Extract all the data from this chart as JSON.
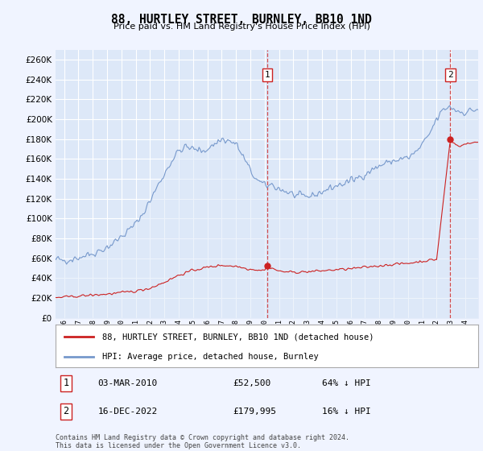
{
  "title": "88, HURTLEY STREET, BURNLEY, BB10 1ND",
  "subtitle": "Price paid vs. HM Land Registry's House Price Index (HPI)",
  "background_color": "#f0f4ff",
  "plot_bg_color": "#dde8f8",
  "grid_color": "#ffffff",
  "ylim": [
    0,
    270000
  ],
  "yticks": [
    0,
    20000,
    40000,
    60000,
    80000,
    100000,
    120000,
    140000,
    160000,
    180000,
    200000,
    220000,
    240000,
    260000
  ],
  "xlim_start": 1995.4,
  "xlim_end": 2024.9,
  "hpi_color": "#7799cc",
  "hpi_fill_color": "#dde8f8",
  "price_color": "#cc2222",
  "vline_color": "#cc2222",
  "annotation_box_color": "#cc2222",
  "sale1_x": 2010.17,
  "sale1_y": 52500,
  "sale1_label": "1",
  "sale1_date": "03-MAR-2010",
  "sale1_price": "£52,500",
  "sale1_hpi": "64% ↓ HPI",
  "sale2_x": 2022.96,
  "sale2_y": 179995,
  "sale2_label": "2",
  "sale2_date": "16-DEC-2022",
  "sale2_price": "£179,995",
  "sale2_hpi": "16% ↓ HPI",
  "legend_label1": "88, HURTLEY STREET, BURNLEY, BB10 1ND (detached house)",
  "legend_label2": "HPI: Average price, detached house, Burnley",
  "footer": "Contains HM Land Registry data © Crown copyright and database right 2024.\nThis data is licensed under the Open Government Licence v3.0."
}
